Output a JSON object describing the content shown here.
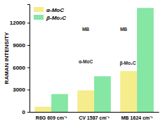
{
  "chart_data": {
    "type": "bar",
    "categories": [
      "R6G 609 cm⁻¹",
      "CV 1587 cm⁻¹",
      "MB 1624 cm⁻¹"
    ],
    "series": [
      {
        "name": "α-MoC",
        "color": "#f5ec8c",
        "values": [
          700,
          2900,
          5500
        ]
      },
      {
        "name": "β-Mo₂C",
        "color": "#86e6a4",
        "values": [
          2400,
          4800,
          14000
        ]
      }
    ],
    "y_label": "RAMAN INTENSITY",
    "ylim": [
      0,
      14500
    ],
    "yticks": [
      0,
      3000,
      6000,
      9000,
      12000
    ],
    "legend": "top-left",
    "annotations": [
      "MB",
      "MB",
      "α-MoC",
      "β-Mo₂C"
    ]
  }
}
